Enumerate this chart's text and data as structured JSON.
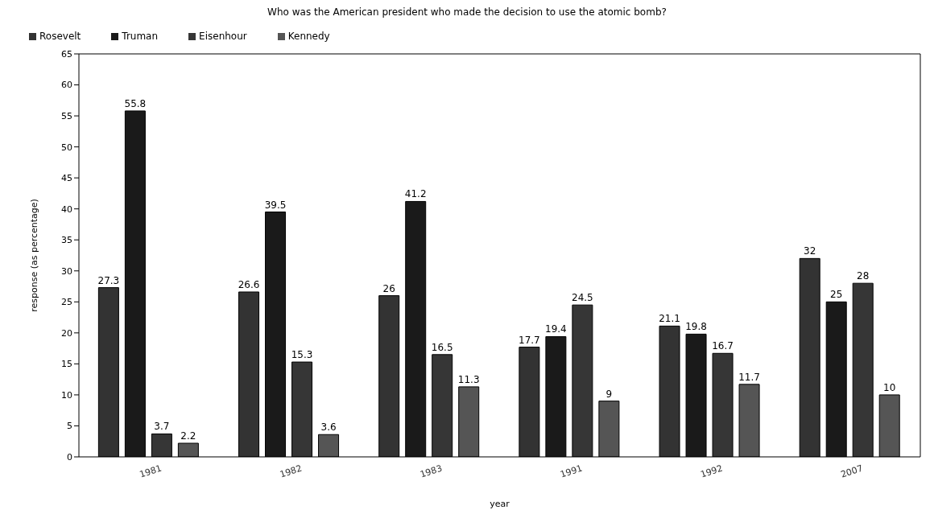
{
  "chart_data": {
    "type": "bar",
    "title": "Who was the American president who made the decision to use the atomic bomb?",
    "xlabel": "year",
    "ylabel": "response (as percentage)",
    "categories": [
      "1981",
      "1982",
      "1983",
      "1991",
      "1992",
      "2007"
    ],
    "series": [
      {
        "name": "Rosevelt",
        "color": "#333333",
        "values": [
          27.3,
          26.6,
          26,
          17.7,
          21.1,
          32
        ]
      },
      {
        "name": "Truman",
        "color": "#1a1a1a",
        "values": [
          55.8,
          39.5,
          41.2,
          19.4,
          19.8,
          25
        ]
      },
      {
        "name": "Eisenhour",
        "color": "#363636",
        "values": [
          3.7,
          15.3,
          16.5,
          24.5,
          16.7,
          28
        ]
      },
      {
        "name": "Kennedy",
        "color": "#555555",
        "values": [
          2.2,
          3.6,
          11.3,
          9,
          11.7,
          10
        ]
      }
    ],
    "ylim": [
      0,
      65
    ],
    "yticks": [
      0,
      5,
      10,
      15,
      20,
      25,
      30,
      35,
      40,
      45,
      50,
      55,
      60,
      65
    ],
    "grid": false,
    "legend": "top left",
    "data_labels": true
  }
}
